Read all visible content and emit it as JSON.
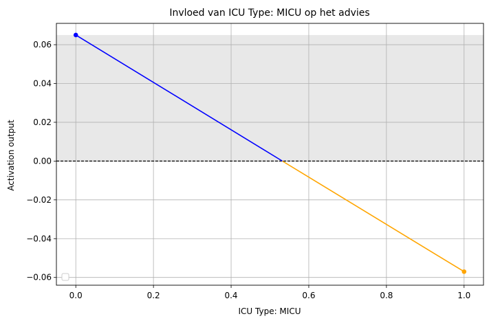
{
  "chart_data": {
    "type": "line",
    "title": "Invloed van ICU Type: MICU op het advies",
    "xlabel": "ICU Type: MICU",
    "ylabel": "Activation output",
    "xlim": [
      -0.05,
      1.05
    ],
    "ylim": [
      -0.064,
      0.071
    ],
    "xticks": [
      0.0,
      0.2,
      0.4,
      0.6,
      0.8,
      1.0
    ],
    "xtick_labels": [
      "0.0",
      "0.2",
      "0.4",
      "0.6",
      "0.8",
      "1.0"
    ],
    "yticks": [
      -0.06,
      -0.04,
      -0.02,
      0.0,
      0.02,
      0.04,
      0.06
    ],
    "ytick_labels": [
      "−0.06",
      "−0.04",
      "−0.02",
      "0.00",
      "0.02",
      "0.04",
      "0.06"
    ],
    "grid": true,
    "legend": "lower-left",
    "shaded_band": {
      "y_from": 0.0,
      "y_to": 0.065,
      "color": "#e8e8e8"
    },
    "reference_line": {
      "y": 0.0,
      "style": "dashed",
      "color": "#000000"
    },
    "series": [
      {
        "x": [
          0.0,
          0.532
        ],
        "y": [
          0.065,
          0.0
        ],
        "color": "#0000ff"
      },
      {
        "x": [
          0.532,
          1.0
        ],
        "y": [
          0.0,
          -0.057
        ],
        "color": "#ffa500"
      }
    ],
    "points": [
      {
        "x": 0.0,
        "y": 0.065,
        "color": "#0000ff"
      },
      {
        "x": 1.0,
        "y": -0.057,
        "color": "#ffa500"
      }
    ]
  }
}
